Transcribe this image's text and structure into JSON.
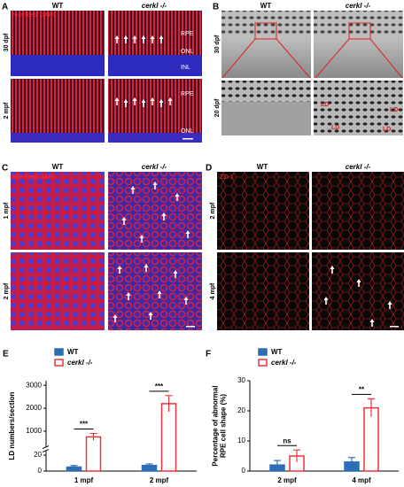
{
  "panels": {
    "A": {
      "letter": "A",
      "columns": [
        "WT",
        "cerkl -/-"
      ],
      "rows": [
        "30 dpf",
        "2 mpf"
      ],
      "stain": "Nile Red/ DAPI",
      "layer_labels": [
        "RPE",
        "ONL",
        "INL",
        "RPE",
        "ONL"
      ]
    },
    "B": {
      "letter": "B",
      "columns": [
        "WT",
        "cerkl -/-"
      ],
      "rows": [
        "30 dpf",
        "20 dpf"
      ],
      "annotations": [
        "LD",
        "LD",
        "LD",
        "LD"
      ]
    },
    "C": {
      "letter": "C",
      "columns": [
        "WT",
        "cerkl -/-"
      ],
      "rows": [
        "1 mpf",
        "2 mpf"
      ],
      "stain": "Nile Red/ DAPI"
    },
    "D": {
      "letter": "D",
      "columns": [
        "WT",
        "cerkl -/-"
      ],
      "rows": [
        "2 mpf",
        "4 mpf"
      ],
      "stain": "ZO-1"
    },
    "E": {
      "letter": "E"
    },
    "F": {
      "letter": "F"
    }
  },
  "chart_data": [
    {
      "type": "bar",
      "ylabel": [
        "LD numbers/section"
      ],
      "categories": [
        "1 mpf",
        "2 mpf"
      ],
      "series": [
        {
          "name": "WT",
          "color": "#2c6db5",
          "filled": true,
          "values": [
            5,
            7
          ],
          "errors": [
            2,
            2
          ]
        },
        {
          "name": "cerkl -/-",
          "color": "#e8353b",
          "filled": false,
          "values": [
            750,
            2200
          ],
          "errors": [
            150,
            350
          ]
        }
      ],
      "ylim": [
        0,
        3200
      ],
      "axis_break": [
        25,
        320
      ],
      "yticks": [
        0,
        20,
        1000,
        2000,
        3000
      ],
      "significance": [
        "***",
        "***"
      ],
      "legend": "upper left"
    },
    {
      "type": "bar",
      "ylabel": [
        "Percentage of abnormal",
        "RPE cell shape (%)"
      ],
      "categories": [
        "2 mpf",
        "4 mpf"
      ],
      "series": [
        {
          "name": "WT",
          "color": "#2c6db5",
          "filled": true,
          "values": [
            2,
            3
          ],
          "errors": [
            1.5,
            1.5
          ]
        },
        {
          "name": "cerkl -/-",
          "color": "#e8353b",
          "filled": false,
          "values": [
            5,
            21
          ],
          "errors": [
            2,
            3
          ]
        }
      ],
      "ylim": [
        0,
        30
      ],
      "yticks": [
        0,
        10,
        20,
        30
      ],
      "significance": [
        "ns",
        "**"
      ],
      "legend": "upper left"
    }
  ]
}
